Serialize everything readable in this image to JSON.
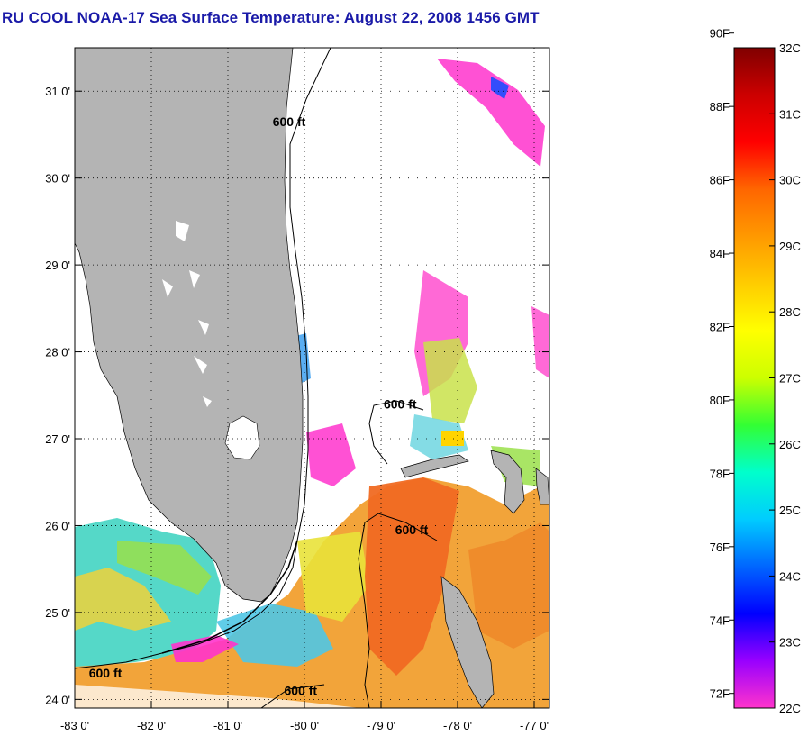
{
  "title": "RU COOL  NOAA-17  Sea Surface Temperature:  August 22, 2008 1456 GMT",
  "map": {
    "lon_range": [
      -83,
      -76.8
    ],
    "lat_range": [
      23.9,
      31.5
    ],
    "x_ticks": [
      {
        "lon": -83,
        "label": "-83 0'"
      },
      {
        "lon": -82,
        "label": "-82 0'"
      },
      {
        "lon": -81,
        "label": "-81 0'"
      },
      {
        "lon": -80,
        "label": "-80 0'"
      },
      {
        "lon": -79,
        "label": "-79 0'"
      },
      {
        "lon": -78,
        "label": "-78 0'"
      },
      {
        "lon": -77,
        "label": "-77 0'"
      }
    ],
    "y_ticks": [
      {
        "lat": 24,
        "label": "24 0'"
      },
      {
        "lat": 25,
        "label": "25 0'"
      },
      {
        "lat": 26,
        "label": "26 0'"
      },
      {
        "lat": 27,
        "label": "27 0'"
      },
      {
        "lat": 28,
        "label": "28 0'"
      },
      {
        "lat": 29,
        "label": "29 0'"
      },
      {
        "lat": 30,
        "label": "30 0'"
      },
      {
        "lat": 31,
        "label": "31 0'"
      }
    ],
    "contour_labels": [
      {
        "text": "600 ft",
        "lon": -80.2,
        "lat": 30.6
      },
      {
        "text": "600 ft",
        "lon": -78.75,
        "lat": 27.35
      },
      {
        "text": "600 ft",
        "lon": -78.6,
        "lat": 25.9
      },
      {
        "text": "600 ft",
        "lon": -82.6,
        "lat": 24.25
      },
      {
        "text": "600 ft",
        "lon": -80.05,
        "lat": 24.05
      }
    ],
    "colors": {
      "land": "#b4b4b4",
      "water_nodata": "#ffffff",
      "coast": "#000000"
    }
  },
  "colorbar": {
    "f_labels": [
      {
        "label": "90F",
        "value": 90
      },
      {
        "label": "88F",
        "value": 88
      },
      {
        "label": "86F",
        "value": 86
      },
      {
        "label": "84F",
        "value": 84
      },
      {
        "label": "82F",
        "value": 82
      },
      {
        "label": "80F",
        "value": 80
      },
      {
        "label": "78F",
        "value": 78
      },
      {
        "label": "76F",
        "value": 76
      },
      {
        "label": "74F",
        "value": 74
      },
      {
        "label": "72F",
        "value": 72
      }
    ],
    "c_labels": [
      {
        "label": "32C",
        "value": 32
      },
      {
        "label": "31C",
        "value": 31
      },
      {
        "label": "30C",
        "value": 30
      },
      {
        "label": "29C",
        "value": 29
      },
      {
        "label": "28C",
        "value": 28
      },
      {
        "label": "27C",
        "value": 27
      },
      {
        "label": "26C",
        "value": 26
      },
      {
        "label": "25C",
        "value": 25
      },
      {
        "label": "24C",
        "value": 24
      },
      {
        "label": "23C",
        "value": 23
      },
      {
        "label": "22C",
        "value": 22
      }
    ],
    "range_c": [
      22,
      32
    ],
    "gradient_stops": [
      "#ff33cc",
      "#9900ff",
      "#0000ff",
      "#0066ff",
      "#00ccff",
      "#00ffcc",
      "#33ff33",
      "#ccff00",
      "#ffff00",
      "#ffcc00",
      "#ff9900",
      "#ff6600",
      "#ff0000",
      "#cc0000",
      "#800000"
    ]
  }
}
